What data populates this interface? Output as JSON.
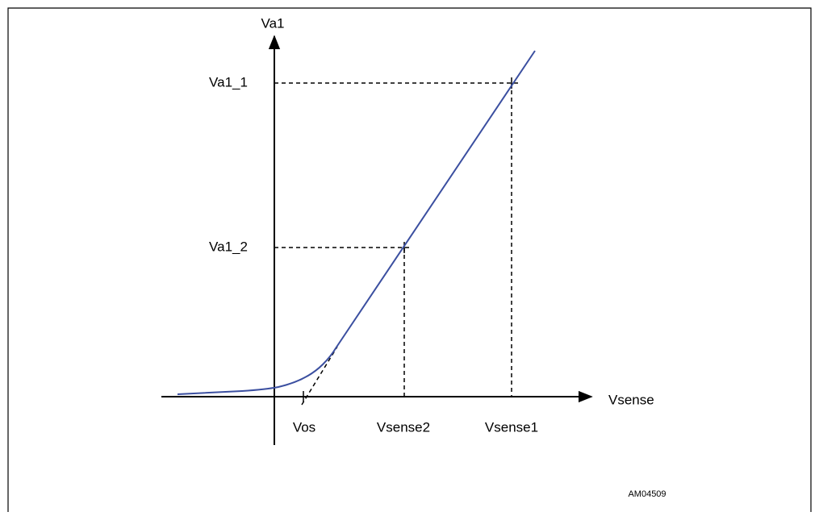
{
  "axes": {
    "y_label": "Va1",
    "x_label": "Vsense"
  },
  "y_levels": [
    "Va1_1",
    "Va1_2"
  ],
  "x_points": [
    "Vos",
    "Vsense2",
    "Vsense1"
  ],
  "figure_id": "AM04509"
}
